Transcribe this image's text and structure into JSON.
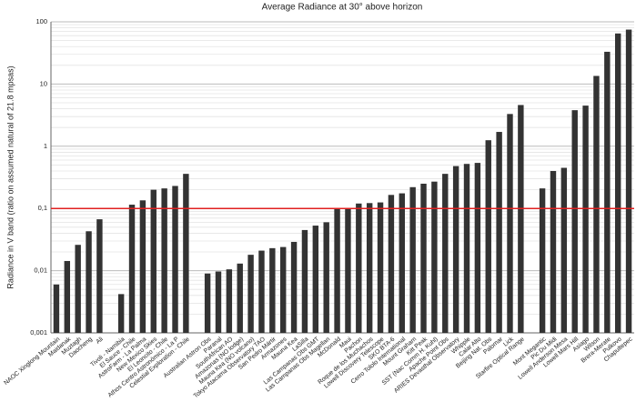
{
  "chart_data": {
    "type": "bar",
    "title": "Average Radiance at 30° above horizon",
    "y_label": "Radiance in V band (ratio on assumed natural of 21.8 mpsas)",
    "log_y": true,
    "grid": true,
    "color": "#333333",
    "reference_line": {
      "value": 0.1,
      "color": "#e02020"
    },
    "ylim": [
      0.001,
      100
    ],
    "yticks": [
      {
        "value": 0.001,
        "label": "0,001"
      },
      {
        "value": 0.01,
        "label": "0,01"
      },
      {
        "value": 0.1,
        "label": "0,1"
      },
      1,
      10,
      100
    ],
    "categories": [
      "NAOC Xinglong Mountain",
      "Maidanak",
      "Muztagh",
      "Daocheng",
      "Ali",
      null,
      "Tivoli - Namibia",
      "El Sauce - Chile",
      "AstroFarm - La Palma",
      "New Mexico Skies",
      "El Leoncito - Chile",
      "Athos Centro Astronómico - La P",
      "Celestial Exploration - Chile",
      null,
      "Australian Astron Obs",
      "Paranal",
      "SouthAfrican AO",
      "Amazonas (NO lodge)",
      "Mauna Kea (NO volcano)",
      "Tokyo Atacama Observatory TAO",
      "San Pedro Mártir",
      "Armazones",
      "Mauna Kea",
      "LaSilla",
      "Las Campanas Obs GMT",
      "Las Campanas Obs Magellan",
      "McDonald",
      "Maui",
      "Pachon",
      "Roque de los Muchachos",
      "Lowell Discovery Telescope",
      "SKO BTA-6",
      "Cerro Tololo International",
      "Mount Graham",
      "Kitt Peak",
      "SST (Nac Comm H. Kuhl)",
      "Apache Point Obs",
      "ARIES Devasthal Observatory",
      "Whipple",
      "Calar Alto",
      "Beijing Nat. Obs",
      "Palomar",
      "Lick",
      "Starfire Optical Range",
      null,
      "Mont Megantic",
      "Pic Du Midi",
      "Lowell Anderson Mesa",
      "Lowell Mars Hill",
      "Asiago",
      "Wilson",
      "Brera-Merate",
      "Pulkovo",
      "Chapultepec"
    ],
    "values": [
      0.006,
      0.0143,
      0.026,
      0.043,
      0.067,
      null,
      0.0042,
      0.115,
      0.135,
      0.2,
      0.21,
      0.23,
      0.36,
      null,
      0.009,
      0.0097,
      0.0105,
      0.013,
      0.018,
      0.021,
      0.023,
      0.024,
      0.029,
      0.045,
      0.053,
      0.06,
      0.1,
      0.102,
      0.12,
      0.122,
      0.125,
      0.165,
      0.175,
      0.22,
      0.25,
      0.27,
      0.36,
      0.48,
      0.52,
      0.54,
      1.25,
      1.7,
      3.3,
      4.6,
      null,
      0.21,
      0.4,
      0.45,
      3.8,
      4.5,
      13.5,
      33,
      65,
      75
    ]
  }
}
